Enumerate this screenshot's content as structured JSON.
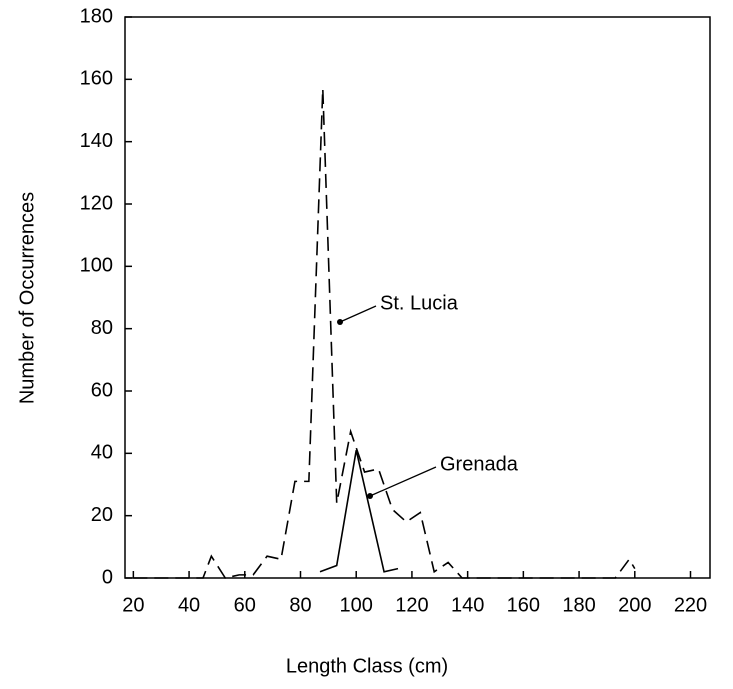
{
  "chart_data": {
    "type": "line",
    "x_label": "Length Class (cm)",
    "y_label": "Number of Occurrences",
    "xlim": [
      17,
      227
    ],
    "ylim": [
      0,
      180
    ],
    "xticks": [
      20,
      40,
      60,
      80,
      100,
      120,
      140,
      160,
      180,
      200,
      220
    ],
    "yticks": [
      0,
      20,
      40,
      60,
      80,
      100,
      120,
      140,
      160,
      180
    ],
    "grid": false,
    "series": [
      {
        "name": "St. Lucia",
        "color": "#000000",
        "dash": true,
        "x": [
          20,
          45,
          48,
          53,
          58,
          63,
          68,
          73,
          78,
          83,
          88,
          93,
          98,
          103,
          108,
          113,
          118,
          123,
          128,
          133,
          138,
          193,
          198,
          200
        ],
        "values": [
          0,
          0,
          7,
          0,
          1,
          1,
          7,
          6,
          31,
          31,
          157,
          24,
          47,
          34,
          35,
          22,
          18,
          21,
          2,
          5,
          0,
          0,
          6,
          3
        ]
      },
      {
        "name": "Grenada",
        "color": "#000000",
        "dash": false,
        "x": [
          87,
          93,
          100,
          110,
          115
        ],
        "values": [
          2,
          4,
          41,
          2,
          3
        ]
      }
    ]
  }
}
